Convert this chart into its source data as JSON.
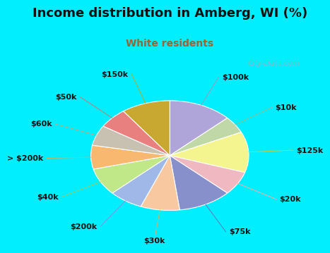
{
  "title": "Income distribution in Amberg, WI (%)",
  "subtitle": "White residents",
  "title_color": "#111111",
  "subtitle_color": "#996633",
  "bg_cyan": "#00eeff",
  "bg_panel": "#e8f5ee",
  "labels": [
    "$100k",
    "$10k",
    "$125k",
    "$20k",
    "$75k",
    "$30k",
    "$200k",
    "$40k",
    "> $200k",
    "$60k",
    "$50k",
    "$150k"
  ],
  "values": [
    13,
    5,
    12,
    7,
    11,
    8,
    7,
    8,
    7,
    6,
    6,
    10
  ],
  "colors": [
    "#b0a5d8",
    "#c0d8a8",
    "#f5f590",
    "#f0b8c0",
    "#8890cc",
    "#f8c8a0",
    "#a0b8e8",
    "#c0e888",
    "#f8b870",
    "#c8c0b0",
    "#e88080",
    "#c8a830"
  ],
  "title_fontsize": 13,
  "subtitle_fontsize": 10,
  "label_fontsize": 8
}
